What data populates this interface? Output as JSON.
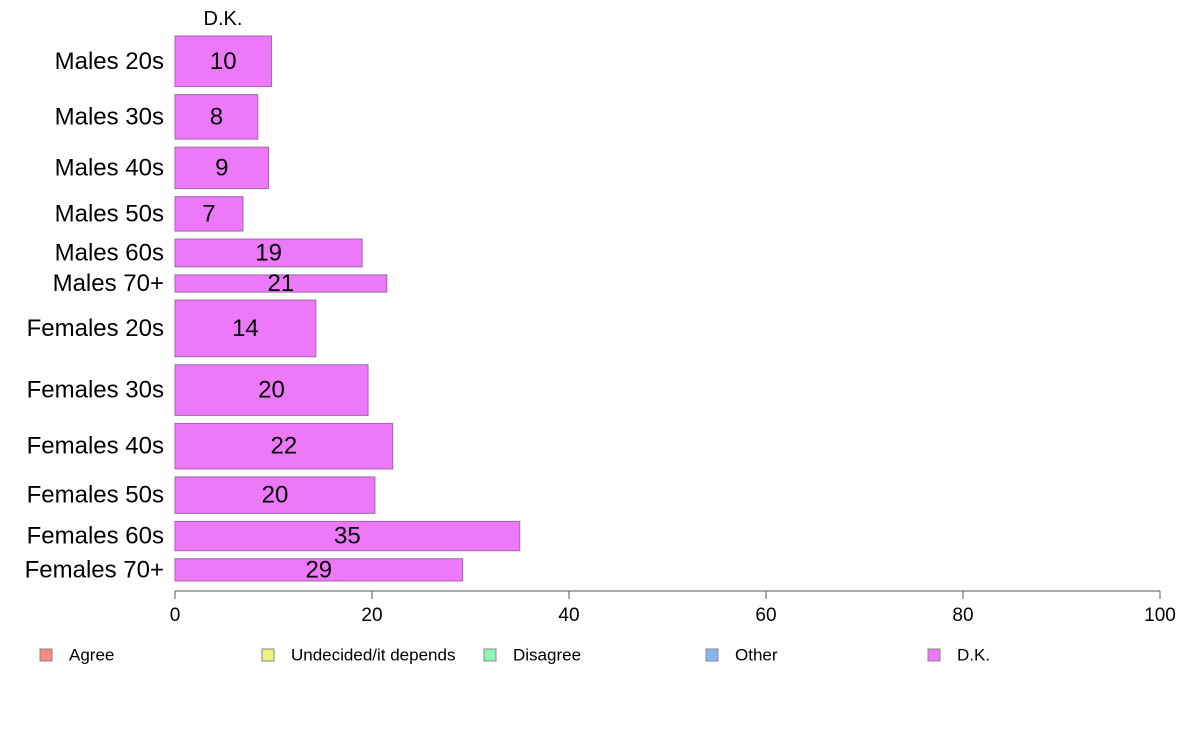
{
  "chart_data": {
    "type": "bar",
    "orientation": "horizontal",
    "series_header": "D.K.",
    "categories": [
      "Males 20s",
      "Males 30s",
      "Males 40s",
      "Males 50s",
      "Males 60s",
      "Males 70+",
      "Females 20s",
      "Females 30s",
      "Females 40s",
      "Females 50s",
      "Females 60s",
      "Females 70+"
    ],
    "values": [
      9.8,
      8.4,
      9.5,
      6.9,
      19.0,
      21.5,
      14.3,
      19.6,
      22.1,
      20.3,
      35.0,
      29.2
    ],
    "value_labels": [
      "10",
      "8",
      "9",
      "7",
      "19",
      "21",
      "14",
      "20",
      "22",
      "20",
      "35",
      "29"
    ],
    "relative_group_sizes": [
      1.0,
      0.88,
      0.82,
      0.68,
      0.55,
      0.34,
      1.12,
      1.0,
      0.9,
      0.72,
      0.58,
      0.44
    ],
    "xlim": [
      0,
      100
    ],
    "xticks": [
      0,
      20,
      40,
      60,
      80,
      100
    ],
    "xtick_labels": [
      "0",
      "20",
      "40",
      "60",
      "80",
      "100"
    ],
    "grid": false,
    "legend_position": "bottom",
    "legend": [
      {
        "label": "Agree",
        "color": "#f88a85"
      },
      {
        "label": "Undecided/it depends",
        "color": "#eef57c"
      },
      {
        "label": "Disagree",
        "color": "#88f6b6"
      },
      {
        "label": "Other",
        "color": "#86b5f3"
      },
      {
        "label": "D.K.",
        "color": "#ee78fa"
      }
    ],
    "bar_color": "#ee78fa",
    "bar_edge_color": "#9a6aa6"
  }
}
